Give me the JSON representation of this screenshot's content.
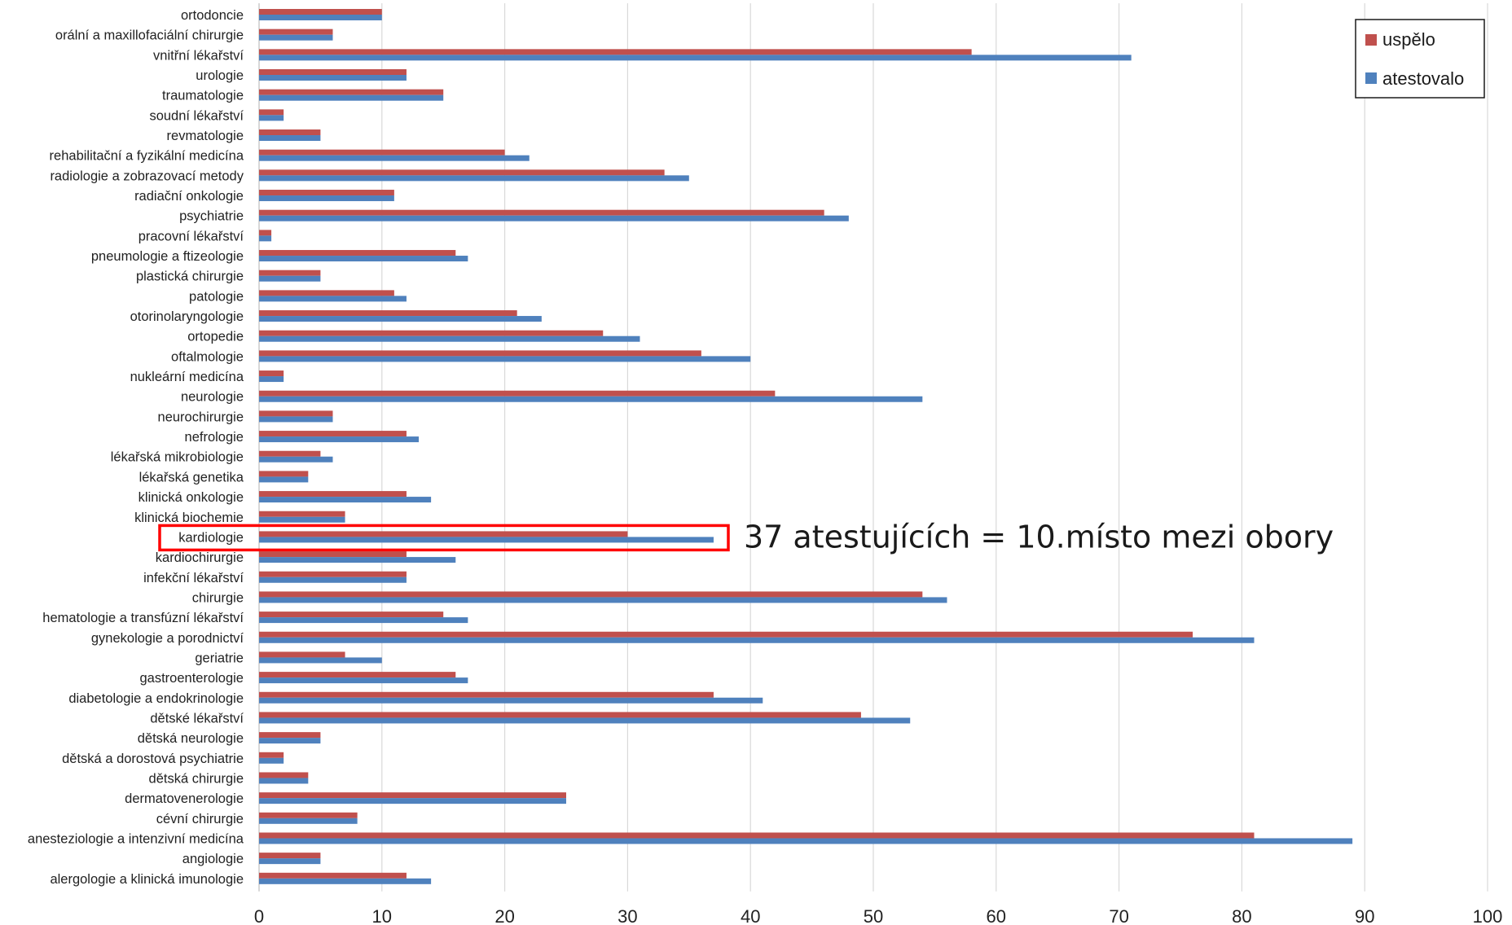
{
  "chart_data": {
    "type": "bar",
    "orientation": "horizontal",
    "categories": [
      "ortodoncie",
      "orální a maxillofaciální chirurgie",
      "vnitřní lékařství",
      "urologie",
      "traumatologie",
      "soudní lékařství",
      "revmatologie",
      "rehabilitační a fyzikální medicína",
      "radiologie a zobrazovací metody",
      "radiační onkologie",
      "psychiatrie",
      "pracovní lékařství",
      "pneumologie a ftizeologie",
      "plastická chirurgie",
      "patologie",
      "otorinolaryngologie",
      "ortopedie",
      "oftalmologie",
      "nukleární medicína",
      "neurologie",
      "neurochirurgie",
      "nefrologie",
      "lékařská mikrobiologie",
      "lékařská genetika",
      "klinická onkologie",
      "klinická biochemie",
      "kardiologie",
      "kardiochirurgie",
      "infekční lékařství",
      "chirurgie",
      "hematologie a transfúzní lékařství",
      "gynekologie a porodnictví",
      "geriatrie",
      "gastroenterologie",
      "diabetologie a endokrinologie",
      "dětské lékařství",
      "dětská neurologie",
      "dětská a dorostová psychiatrie",
      "dětská chirurgie",
      "dermatovenerologie",
      "cévní chirurgie",
      "anesteziologie a intenzivní medicína",
      "angiologie",
      "alergologie a klinická imunologie"
    ],
    "series": [
      {
        "name": "uspělo",
        "color": "#c0504d",
        "values": [
          10,
          6,
          58,
          12,
          15,
          2,
          5,
          20,
          33,
          11,
          46,
          1,
          16,
          5,
          11,
          21,
          28,
          36,
          2,
          42,
          6,
          12,
          5,
          4,
          12,
          7,
          30,
          12,
          12,
          54,
          15,
          76,
          7,
          16,
          37,
          49,
          5,
          2,
          4,
          25,
          8,
          81,
          5,
          12
        ]
      },
      {
        "name": "atestovalo",
        "color": "#4f81bd",
        "values": [
          10,
          6,
          71,
          12,
          15,
          2,
          5,
          22,
          35,
          11,
          48,
          1,
          17,
          5,
          12,
          23,
          31,
          40,
          2,
          54,
          6,
          13,
          6,
          4,
          14,
          7,
          37,
          16,
          12,
          56,
          17,
          81,
          10,
          17,
          41,
          53,
          5,
          2,
          4,
          25,
          8,
          89,
          5,
          14
        ]
      }
    ],
    "xlim": [
      0,
      100
    ],
    "xticks": [
      "0",
      "10",
      "20",
      "30",
      "40",
      "50",
      "60",
      "70",
      "80",
      "90",
      "100"
    ],
    "grid": true,
    "legend": "top-right",
    "highlight_category": "kardiologie",
    "highlight_color": "#ff0000",
    "annotation": "37 atestujících = 10.místo mezi obory"
  }
}
